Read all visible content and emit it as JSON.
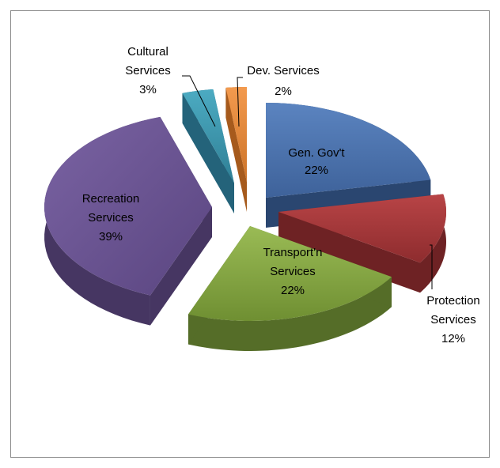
{
  "chart_data": {
    "type": "pie",
    "title": "",
    "style": "3d-exploded",
    "slices": [
      {
        "key": "gen",
        "label": "Gen. Gov't",
        "value": 22,
        "pct_label": "22%",
        "color": "#4a72ad",
        "side": "#2a4670"
      },
      {
        "key": "prot",
        "label": "Protection Services",
        "value": 12,
        "pct_label": "12%",
        "color": "#a7383a",
        "side": "#6e2224"
      },
      {
        "key": "trans",
        "label": "Transport'n Services",
        "value": 22,
        "pct_label": "22%",
        "color": "#86a843",
        "side": "#556d28"
      },
      {
        "key": "rec",
        "label": "Recreation Services",
        "value": 39,
        "pct_label": "39%",
        "color": "#6a5391",
        "side": "#463662"
      },
      {
        "key": "cult",
        "label": "Cultural Services",
        "value": 3,
        "pct_label": "3%",
        "color": "#3d99b1",
        "side": "#24637a"
      },
      {
        "key": "dev",
        "label": "Dev. Services",
        "value": 2,
        "pct_label": "2%",
        "color": "#e88a3c",
        "side": "#a65a1c"
      }
    ]
  }
}
